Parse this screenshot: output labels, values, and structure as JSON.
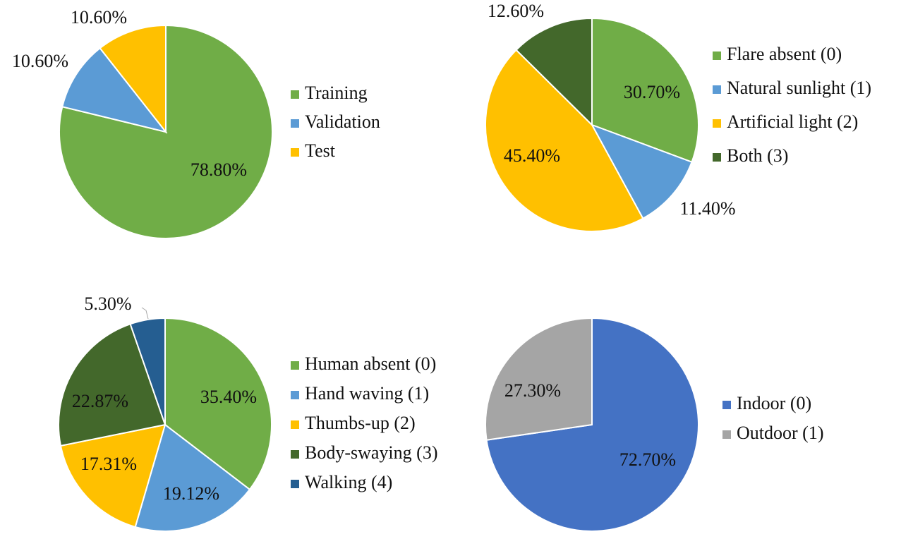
{
  "chart_data": [
    {
      "type": "pie",
      "legend_position": "right",
      "categories": [
        "Training",
        "Validation",
        "Test"
      ],
      "values": [
        78.8,
        10.6,
        10.6
      ],
      "data_labels": [
        "78.80%",
        "10.60%",
        "10.60%"
      ],
      "colors": [
        "#70ad47",
        "#5b9bd5",
        "#ffc000"
      ]
    },
    {
      "type": "pie",
      "legend_position": "right",
      "categories": [
        "Flare absent (0)",
        "Natural sunlight (1)",
        "Artificial light (2)",
        "Both (3)"
      ],
      "values": [
        30.7,
        11.4,
        45.4,
        12.6
      ],
      "data_labels": [
        "30.70%",
        "11.40%",
        "45.40%",
        "12.60%"
      ],
      "colors": [
        "#70ad47",
        "#5b9bd5",
        "#ffc000",
        "#43682b"
      ]
    },
    {
      "type": "pie",
      "legend_position": "right",
      "categories": [
        "Human absent (0)",
        "Hand waving (1)",
        "Thumbs-up (2)",
        "Body-swaying (3)",
        "Walking (4)"
      ],
      "values": [
        35.4,
        19.12,
        17.31,
        22.87,
        5.3
      ],
      "data_labels": [
        "35.40%",
        "19.12%",
        "17.31%",
        "22.87%",
        "5.30%"
      ],
      "colors": [
        "#70ad47",
        "#5b9bd5",
        "#ffc000",
        "#43682b",
        "#255e91"
      ]
    },
    {
      "type": "pie",
      "legend_position": "right",
      "categories": [
        "Indoor (0)",
        "Outdoor (1)"
      ],
      "values": [
        72.7,
        27.3
      ],
      "data_labels": [
        "72.70%",
        "27.30%"
      ],
      "colors": [
        "#4472c4",
        "#a5a5a5"
      ]
    }
  ]
}
